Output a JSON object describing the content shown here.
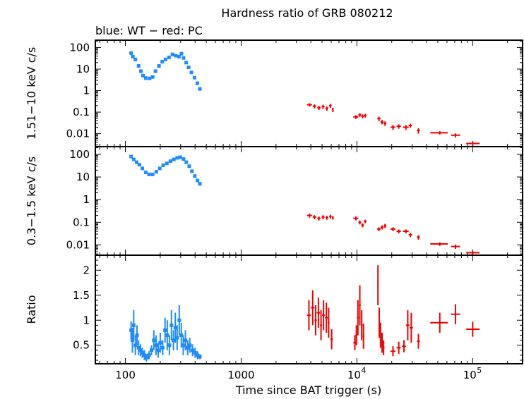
{
  "title": "Hardness ratio of GRB 080212",
  "subtitle": "blue: WT − red: PC",
  "chart_data": {
    "type": "scatter",
    "x_scale": "log",
    "xlabel": "Time since BAT trigger (s)",
    "xlim": [
      55,
      270000
    ],
    "x_ticks": [
      {
        "value": 100,
        "label": "100",
        "exp": ""
      },
      {
        "value": 1000,
        "label": "1000",
        "exp": ""
      },
      {
        "value": 10000,
        "label": "10",
        "exp": "4"
      },
      {
        "value": 100000,
        "label": "10",
        "exp": "5"
      }
    ],
    "colors": {
      "wt": "#1e8cff",
      "pc": "#ee0000"
    },
    "series_names": [
      "WT",
      "PC"
    ],
    "panels": [
      {
        "id": "hard",
        "ylabel": "1.51−10 keV c/s",
        "y_scale": "log",
        "ylim": [
          0.0025,
          220
        ],
        "y_ticks": [
          {
            "value": 100,
            "label": "100"
          },
          {
            "value": 10,
            "label": "10"
          },
          {
            "value": 1,
            "label": "1"
          },
          {
            "value": 0.1,
            "label": "0.1"
          },
          {
            "value": 0.01,
            "label": "0.01"
          }
        ],
        "wt": [
          [
            112,
            55
          ],
          [
            116,
            38
          ],
          [
            122,
            28
          ],
          [
            130,
            14
          ],
          [
            136,
            8
          ],
          [
            142,
            5
          ],
          [
            150,
            3.8
          ],
          [
            162,
            3.7
          ],
          [
            172,
            4.3
          ],
          [
            182,
            8
          ],
          [
            195,
            14
          ],
          [
            208,
            22
          ],
          [
            222,
            28
          ],
          [
            238,
            35
          ],
          [
            255,
            48
          ],
          [
            272,
            42
          ],
          [
            290,
            38
          ],
          [
            305,
            52
          ],
          [
            318,
            33
          ],
          [
            335,
            20
          ],
          [
            352,
            12
          ],
          [
            372,
            7
          ],
          [
            395,
            4
          ],
          [
            418,
            2.2
          ],
          [
            440,
            1.2
          ]
        ],
        "pc": [
          [
            3900,
            0.22,
            3700,
            4100,
            0.04
          ],
          [
            4300,
            0.19,
            4150,
            4450,
            0.04
          ],
          [
            4700,
            0.16,
            4550,
            4850,
            0.035
          ],
          [
            5100,
            0.18,
            4950,
            5250,
            0.04
          ],
          [
            5500,
            0.15,
            5350,
            5650,
            0.035
          ],
          [
            5900,
            0.2,
            5750,
            6050,
            0.04
          ],
          [
            6200,
            0.13,
            6100,
            6300,
            0.03
          ],
          [
            9800,
            0.06,
            9300,
            10300,
            0.012
          ],
          [
            10600,
            0.075,
            10300,
            10900,
            0.015
          ],
          [
            11200,
            0.065,
            10900,
            11500,
            0.013
          ],
          [
            11800,
            0.07,
            11500,
            12100,
            0.014
          ],
          [
            15500,
            0.05,
            15000,
            16000,
            0.012
          ],
          [
            16500,
            0.035,
            16000,
            17000,
            0.008
          ],
          [
            17500,
            0.03,
            17000,
            18000,
            0.007
          ],
          [
            20500,
            0.02,
            19500,
            21500,
            0.005
          ],
          [
            23000,
            0.022,
            22000,
            24000,
            0.005
          ],
          [
            26500,
            0.02,
            25000,
            28000,
            0.005
          ],
          [
            29000,
            0.024,
            28000,
            30000,
            0.005
          ],
          [
            34000,
            0.014,
            33000,
            35000,
            0.004
          ],
          [
            52000,
            0.011,
            43000,
            61000,
            0.002
          ],
          [
            71000,
            0.0085,
            65000,
            78000,
            0.0018
          ],
          [
            100000,
            0.0035,
            88000,
            115000,
            0.0008
          ]
        ]
      },
      {
        "id": "soft",
        "ylabel": "0.3−1.5 keV c/s",
        "y_scale": "log",
        "ylim": [
          0.0035,
          220
        ],
        "y_ticks": [
          {
            "value": 100,
            "label": "100"
          },
          {
            "value": 10,
            "label": "10"
          },
          {
            "value": 1,
            "label": "1"
          },
          {
            "value": 0.1,
            "label": "0.1"
          },
          {
            "value": 0.01,
            "label": "0.01"
          }
        ],
        "wt": [
          [
            112,
            80
          ],
          [
            118,
            60
          ],
          [
            125,
            45
          ],
          [
            132,
            35
          ],
          [
            140,
            24
          ],
          [
            150,
            16
          ],
          [
            160,
            13
          ],
          [
            172,
            13
          ],
          [
            185,
            17
          ],
          [
            198,
            24
          ],
          [
            212,
            33
          ],
          [
            228,
            40
          ],
          [
            245,
            50
          ],
          [
            262,
            60
          ],
          [
            280,
            70
          ],
          [
            298,
            75
          ],
          [
            318,
            62
          ],
          [
            336,
            45
          ],
          [
            356,
            30
          ],
          [
            376,
            18
          ],
          [
            398,
            11
          ],
          [
            420,
            7
          ],
          [
            440,
            5
          ]
        ],
        "pc": [
          [
            3900,
            0.2,
            3700,
            4100,
            0.04
          ],
          [
            4300,
            0.17,
            4150,
            4450,
            0.035
          ],
          [
            4700,
            0.15,
            4550,
            4850,
            0.03
          ],
          [
            5100,
            0.17,
            4950,
            5250,
            0.035
          ],
          [
            5500,
            0.16,
            5350,
            5650,
            0.03
          ],
          [
            5900,
            0.18,
            5750,
            6050,
            0.035
          ],
          [
            6200,
            0.16,
            6100,
            6300,
            0.03
          ],
          [
            9800,
            0.15,
            9300,
            10300,
            0.03
          ],
          [
            10600,
            0.1,
            10300,
            10900,
            0.02
          ],
          [
            11200,
            0.075,
            10900,
            11500,
            0.015
          ],
          [
            11800,
            0.11,
            11500,
            12100,
            0.02
          ],
          [
            15500,
            0.05,
            15000,
            16000,
            0.01
          ],
          [
            16500,
            0.06,
            16000,
            17000,
            0.012
          ],
          [
            17500,
            0.07,
            17000,
            18000,
            0.015
          ],
          [
            20500,
            0.05,
            19500,
            21500,
            0.01
          ],
          [
            23000,
            0.04,
            22000,
            24000,
            0.008
          ],
          [
            26500,
            0.04,
            25000,
            28000,
            0.008
          ],
          [
            29000,
            0.028,
            28000,
            30000,
            0.006
          ],
          [
            34000,
            0.022,
            33000,
            35000,
            0.005
          ],
          [
            52000,
            0.011,
            43000,
            61000,
            0.002
          ],
          [
            71000,
            0.0085,
            65000,
            78000,
            0.0018
          ],
          [
            100000,
            0.0045,
            88000,
            115000,
            0.001
          ]
        ]
      },
      {
        "id": "ratio",
        "ylabel": "Ratio",
        "y_scale": "linear",
        "ylim": [
          0.13,
          2.3
        ],
        "y_ticks": [
          {
            "value": 2,
            "label": "2"
          },
          {
            "value": 1.5,
            "label": "1.5"
          },
          {
            "value": 1,
            "label": "1"
          },
          {
            "value": 0.5,
            "label": "0.5"
          }
        ],
        "wt": [
          [
            112,
            0.8,
            0.18
          ],
          [
            115,
            0.6,
            0.25
          ],
          [
            118,
            0.9,
            0.3
          ],
          [
            122,
            0.5,
            0.2
          ],
          [
            126,
            0.7,
            0.2
          ],
          [
            130,
            0.45,
            0.15
          ],
          [
            135,
            0.4,
            0.12
          ],
          [
            140,
            0.35,
            0.1
          ],
          [
            146,
            0.3,
            0.1
          ],
          [
            152,
            0.25,
            0.08
          ],
          [
            160,
            0.3,
            0.08
          ],
          [
            168,
            0.4,
            0.1
          ],
          [
            176,
            0.6,
            0.2
          ],
          [
            184,
            0.5,
            0.2
          ],
          [
            192,
            0.4,
            0.15
          ],
          [
            200,
            0.55,
            0.2
          ],
          [
            210,
            0.45,
            0.15
          ],
          [
            220,
            0.8,
            0.25
          ],
          [
            230,
            0.7,
            0.3
          ],
          [
            240,
            0.5,
            0.2
          ],
          [
            250,
            0.9,
            0.3
          ],
          [
            260,
            0.6,
            0.2
          ],
          [
            270,
            0.85,
            0.3
          ],
          [
            280,
            0.65,
            0.25
          ],
          [
            292,
            1.0,
            0.3
          ],
          [
            304,
            0.7,
            0.25
          ],
          [
            316,
            0.5,
            0.2
          ],
          [
            330,
            0.6,
            0.2
          ],
          [
            345,
            0.45,
            0.15
          ],
          [
            360,
            0.5,
            0.15
          ],
          [
            380,
            0.4,
            0.12
          ],
          [
            400,
            0.35,
            0.1
          ],
          [
            420,
            0.3,
            0.08
          ],
          [
            440,
            0.27,
            0.05
          ]
        ],
        "pc": [
          [
            3850,
            1.1,
            3700,
            4000,
            0.3
          ],
          [
            4150,
            1.25,
            4000,
            4300,
            0.35
          ],
          [
            4400,
            1.0,
            4300,
            4500,
            0.3
          ],
          [
            4650,
            1.15,
            4500,
            4800,
            0.3
          ],
          [
            4900,
            0.9,
            4800,
            5000,
            0.3
          ],
          [
            5150,
            1.1,
            5000,
            5300,
            0.3
          ],
          [
            5450,
            1.05,
            5300,
            5600,
            0.3
          ],
          [
            5700,
            0.95,
            5600,
            5800,
            0.3
          ],
          [
            6050,
            0.62,
            5900,
            6200,
            0.2
          ],
          [
            9600,
            0.55,
            9300,
            9900,
            0.15
          ],
          [
            9900,
            0.7,
            9700,
            10100,
            0.2
          ],
          [
            10200,
            1.05,
            10000,
            10400,
            0.35
          ],
          [
            10600,
            1.3,
            10400,
            10800,
            0.4
          ],
          [
            11000,
            0.9,
            10800,
            11200,
            0.3
          ],
          [
            11400,
            0.68,
            11200,
            11600,
            0.25
          ],
          [
            15200,
            1.7,
            15000,
            15400,
            0.4
          ],
          [
            15600,
            0.95,
            15400,
            15800,
            0.3
          ],
          [
            16000,
            0.7,
            15800,
            16200,
            0.25
          ],
          [
            16500,
            0.55,
            16200,
            16800,
            0.2
          ],
          [
            17000,
            0.45,
            16800,
            17300,
            0.15
          ],
          [
            20500,
            0.38,
            19500,
            21500,
            0.1
          ],
          [
            23000,
            0.45,
            22000,
            24000,
            0.12
          ],
          [
            25500,
            0.48,
            24500,
            26500,
            0.12
          ],
          [
            27500,
            0.9,
            26500,
            28500,
            0.3
          ],
          [
            29500,
            0.85,
            28500,
            30500,
            0.3
          ],
          [
            34000,
            0.58,
            33000,
            35000,
            0.15
          ],
          [
            52000,
            0.95,
            43000,
            61000,
            0.2
          ],
          [
            71000,
            1.12,
            65000,
            78000,
            0.2
          ],
          [
            100000,
            0.82,
            88000,
            115000,
            0.15
          ]
        ]
      }
    ]
  }
}
